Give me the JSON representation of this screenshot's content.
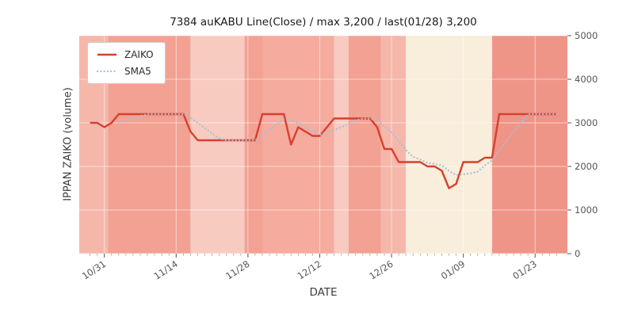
{
  "title": "7384 auKABU Line(Close) / max 3,200 / last(01/28) 3,200",
  "axes": {
    "x_label": "DATE",
    "y_label": "IPPAN ZAIKO (volume)"
  },
  "legend": {
    "items": [
      {
        "label": "ZAIKO",
        "color": "#d7402e",
        "style": "solid"
      },
      {
        "label": "SMA5",
        "color": "#a2c0da",
        "style": "dotted"
      }
    ]
  },
  "chart_data": {
    "type": "line",
    "title": "7384 auKABU Line(Close) / max 3,200 / last(01/28) 3,200",
    "xlabel": "DATE",
    "ylabel": "IPPAN ZAIKO (volume)",
    "ylim": [
      0,
      5000
    ],
    "y_ticks": [
      0,
      1000,
      2000,
      3000,
      4000,
      5000
    ],
    "x_tick_labels": [
      "10/31",
      "11/14",
      "11/28",
      "12/12",
      "12/26",
      "01/09",
      "01/23"
    ],
    "x_tick_indices": [
      2,
      12,
      22,
      32,
      42,
      52,
      62
    ],
    "grid": true,
    "legend_position": "upper-left",
    "dates": [
      "10/29",
      "10/30",
      "10/31",
      "11/01",
      "11/04",
      "11/05",
      "11/06",
      "11/07",
      "11/08",
      "11/11",
      "11/12",
      "11/13",
      "11/14",
      "11/15",
      "11/18",
      "11/19",
      "11/20",
      "11/21",
      "11/22",
      "11/25",
      "11/26",
      "11/27",
      "11/28",
      "11/29",
      "12/02",
      "12/03",
      "12/04",
      "12/05",
      "12/06",
      "12/09",
      "12/10",
      "12/11",
      "12/12",
      "12/13",
      "12/16",
      "12/17",
      "12/18",
      "12/19",
      "12/20",
      "12/23",
      "12/24",
      "12/25",
      "12/26",
      "12/27",
      "12/30",
      "12/31",
      "01/01",
      "01/02",
      "01/03",
      "01/06",
      "01/07",
      "01/08",
      "01/09",
      "01/10",
      "01/13",
      "01/14",
      "01/15",
      "01/16",
      "01/17",
      "01/20",
      "01/21",
      "01/22",
      "01/23",
      "01/24",
      "01/27",
      "01/28"
    ],
    "series": [
      {
        "name": "ZAIKO",
        "color": "#d7402e",
        "style": "solid",
        "values": [
          3000,
          3000,
          2900,
          3000,
          3200,
          3200,
          3200,
          3200,
          3200,
          3200,
          3200,
          3200,
          3200,
          3200,
          2800,
          2600,
          2600,
          2600,
          2600,
          2600,
          2600,
          2600,
          2600,
          2600,
          3200,
          3200,
          3200,
          3200,
          2500,
          2900,
          2800,
          2700,
          2700,
          2900,
          3100,
          3100,
          3100,
          3100,
          3100,
          3100,
          2900,
          2400,
          2400,
          2100,
          2100,
          2100,
          2100,
          2000,
          2000,
          1900,
          1500,
          1600,
          2100,
          2100,
          2100,
          2200,
          2200,
          3200,
          3200,
          3200,
          3200,
          3200,
          3200,
          3200,
          3200,
          3200
        ]
      },
      {
        "name": "SMA5",
        "color": "#a2c0da",
        "style": "dotted",
        "window": 5,
        "values": [
          null,
          null,
          null,
          null,
          3020,
          3060,
          3100,
          3160,
          3200,
          3200,
          3200,
          3200,
          3200,
          3200,
          3120,
          3000,
          2880,
          2760,
          2640,
          2600,
          2600,
          2600,
          2600,
          2600,
          2720,
          2840,
          2960,
          3080,
          3060,
          3000,
          2920,
          2820,
          2720,
          2800,
          2840,
          2900,
          2980,
          3060,
          3100,
          3100,
          3060,
          2920,
          2780,
          2580,
          2380,
          2220,
          2160,
          2080,
          2060,
          2020,
          1900,
          1800,
          1820,
          1840,
          1880,
          2020,
          2140,
          2360,
          2580,
          2800,
          3000,
          3200,
          3200,
          3200,
          3200,
          3200
        ]
      }
    ],
    "background_bands": [
      {
        "from": -1.5,
        "to": 2.5,
        "color": "#f6b7ab"
      },
      {
        "from": 2.5,
        "to": 14,
        "color": "#f2a193"
      },
      {
        "from": 14,
        "to": 21.5,
        "color": "#f8cbc0"
      },
      {
        "from": 21.5,
        "to": 24,
        "color": "#f2a193"
      },
      {
        "from": 24,
        "to": 34,
        "color": "#f5ab9e"
      },
      {
        "from": 34,
        "to": 36,
        "color": "#f8cbc0"
      },
      {
        "from": 36,
        "to": 40.5,
        "color": "#f2a193"
      },
      {
        "from": 40.5,
        "to": 44,
        "color": "#f6b7ab"
      },
      {
        "from": 44,
        "to": 56,
        "color": "#f9eddb"
      },
      {
        "from": 56,
        "to": 66.5,
        "color": "#ef9588"
      }
    ]
  }
}
